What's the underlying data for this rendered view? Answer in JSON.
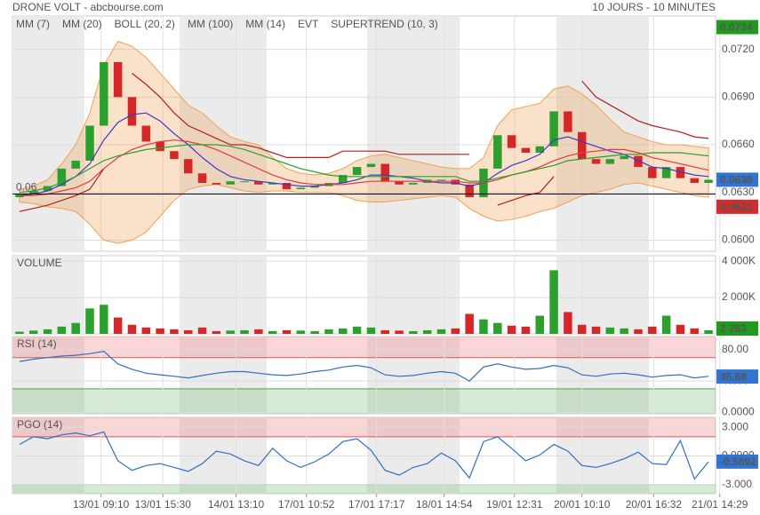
{
  "chart_data": [
    {
      "type": "candlestick",
      "title": "DRONE VOLT - abcbourse.com",
      "subtitle": "10 JOURS - 10 MINUTES",
      "xlim": [
        0,
        50
      ],
      "ylim": [
        0.0593,
        0.0741
      ],
      "yticks": [
        {
          "value": 0.06,
          "label": "0.0600"
        },
        {
          "value": 0.063,
          "label": "0.0630"
        },
        {
          "value": 0.066,
          "label": "0.0660"
        },
        {
          "value": 0.069,
          "label": "0.0690"
        },
        {
          "value": 0.072,
          "label": "0.0720"
        }
      ],
      "grid": true,
      "candles": {
        "up_color": "#2ca02c",
        "down_color": "#d62728",
        "open": [
          0.0627,
          0.0629,
          0.0631,
          0.0634,
          0.0645,
          0.065,
          0.0672,
          0.0712,
          0.069,
          0.0672,
          0.0662,
          0.0656,
          0.0651,
          0.0642,
          0.0636,
          0.0635,
          0.0637,
          0.0637,
          0.0635,
          0.0636,
          0.0632,
          0.0633,
          0.0634,
          0.0636,
          0.0641,
          0.0646,
          0.0648,
          0.0637,
          0.0635,
          0.0636,
          0.0638,
          0.0638,
          0.0635,
          0.0627,
          0.0645,
          0.0666,
          0.0658,
          0.0655,
          0.0659,
          0.0681,
          0.0668,
          0.0651,
          0.0648,
          0.0651,
          0.0653,
          0.0646,
          0.0639,
          0.0646,
          0.0639,
          0.0636
        ],
        "close": [
          0.0629,
          0.0631,
          0.0634,
          0.0645,
          0.065,
          0.0672,
          0.0712,
          0.069,
          0.0672,
          0.0662,
          0.0656,
          0.0651,
          0.0642,
          0.0636,
          0.0635,
          0.0637,
          0.0637,
          0.0635,
          0.0636,
          0.0632,
          0.0633,
          0.0634,
          0.0636,
          0.0641,
          0.0646,
          0.0648,
          0.0637,
          0.0635,
          0.0636,
          0.0638,
          0.0638,
          0.0635,
          0.0627,
          0.0645,
          0.0666,
          0.0658,
          0.0655,
          0.0659,
          0.0681,
          0.0668,
          0.0651,
          0.0648,
          0.0651,
          0.0653,
          0.0646,
          0.0639,
          0.0646,
          0.0639,
          0.0636,
          0.0638
        ]
      },
      "series": [
        {
          "name": "MM (7)",
          "color": "#3a3acf",
          "values": [
            0.0628,
            0.0629,
            0.0631,
            0.0635,
            0.064,
            0.0648,
            0.0663,
            0.0674,
            0.0679,
            0.068,
            0.0675,
            0.0667,
            0.066,
            0.0652,
            0.0645,
            0.064,
            0.0638,
            0.0637,
            0.0636,
            0.0635,
            0.0634,
            0.0634,
            0.0635,
            0.0636,
            0.0638,
            0.0641,
            0.0641,
            0.064,
            0.0639,
            0.0637,
            0.0636,
            0.0636,
            0.0634,
            0.0636,
            0.0642,
            0.0647,
            0.065,
            0.0654,
            0.0663,
            0.0665,
            0.0662,
            0.0659,
            0.0656,
            0.0654,
            0.065,
            0.0646,
            0.0645,
            0.0643,
            0.0641,
            0.064
          ]
        },
        {
          "name": "MM (20)",
          "color": "#e03c3c",
          "values": [
            0.0628,
            0.0628,
            0.0629,
            0.0631,
            0.0633,
            0.0637,
            0.0645,
            0.0652,
            0.0657,
            0.066,
            0.0662,
            0.0663,
            0.0662,
            0.066,
            0.0657,
            0.0653,
            0.0649,
            0.0645,
            0.0641,
            0.0638,
            0.0636,
            0.0635,
            0.0635,
            0.0635,
            0.0636,
            0.0637,
            0.0637,
            0.0637,
            0.0637,
            0.0637,
            0.0637,
            0.0637,
            0.0636,
            0.0636,
            0.0638,
            0.0641,
            0.0643,
            0.0646,
            0.065,
            0.0653,
            0.0655,
            0.0656,
            0.0657,
            0.0657,
            0.0655,
            0.0652,
            0.065,
            0.0648,
            0.0646,
            0.0644
          ]
        },
        {
          "name": "BOLL (20, 2)",
          "color": "#f0a050",
          "upper": [
            0.0632,
            0.0634,
            0.0638,
            0.0648,
            0.066,
            0.068,
            0.071,
            0.0725,
            0.0722,
            0.0715,
            0.0705,
            0.0695,
            0.0685,
            0.068,
            0.0672,
            0.0665,
            0.0662,
            0.066,
            0.0652,
            0.0645,
            0.0642,
            0.0641,
            0.0642,
            0.0645,
            0.065,
            0.0653,
            0.0654,
            0.0652,
            0.065,
            0.0648,
            0.0646,
            0.0645,
            0.0645,
            0.0652,
            0.0672,
            0.0682,
            0.0684,
            0.0686,
            0.0695,
            0.0697,
            0.0692,
            0.0685,
            0.0676,
            0.0668,
            0.0665,
            0.0662,
            0.066,
            0.066,
            0.0659,
            0.0658
          ],
          "lower": [
            0.0624,
            0.0623,
            0.0621,
            0.062,
            0.0618,
            0.061,
            0.06,
            0.0598,
            0.06,
            0.0605,
            0.0615,
            0.0625,
            0.0632,
            0.0634,
            0.0635,
            0.0633,
            0.0631,
            0.063,
            0.0631,
            0.0631,
            0.063,
            0.063,
            0.063,
            0.0628,
            0.0625,
            0.0624,
            0.0624,
            0.0625,
            0.0626,
            0.0627,
            0.0628,
            0.0627,
            0.062,
            0.0615,
            0.0612,
            0.0613,
            0.0615,
            0.0618,
            0.062,
            0.0624,
            0.0628,
            0.063,
            0.0632,
            0.0635,
            0.0636,
            0.0634,
            0.0632,
            0.063,
            0.0628,
            0.0627
          ]
        },
        {
          "name": "MM (100)",
          "color": "#2aa02a",
          "values": [
            0.063,
            0.0631,
            0.0633,
            0.0636,
            0.064,
            0.0645,
            0.065,
            0.0653,
            0.0655,
            0.0657,
            0.0658,
            0.0659,
            0.066,
            0.066,
            0.066,
            0.0659,
            0.0657,
            0.0654,
            0.0651,
            0.0648,
            0.0645,
            0.0643,
            0.0641,
            0.064,
            0.064,
            0.064,
            0.064,
            0.064,
            0.064,
            0.064,
            0.064,
            0.064,
            0.0637,
            0.0637,
            0.0639,
            0.0641,
            0.0643,
            0.0645,
            0.0647,
            0.065,
            0.0651,
            0.0652,
            0.0653,
            0.0654,
            0.0654,
            0.0655,
            0.0655,
            0.0655,
            0.0654,
            0.0653
          ]
        },
        {
          "name": "MM (14)",
          "color": "#444444"
        },
        {
          "name": "EVT",
          "color": "#000000"
        },
        {
          "name": "SUPERTREND (10, 3)",
          "color": "#b02020",
          "values": [
            0.0618,
            0.062,
            0.0622,
            0.0625,
            0.0628,
            0.0632,
            0.0645,
            null,
            0.0705,
            0.0698,
            0.069,
            0.068,
            0.0672,
            0.0668,
            0.0664,
            0.066,
            0.066,
            0.0658,
            0.0655,
            0.0652,
            0.0652,
            0.0652,
            0.0652,
            0.0656,
            0.0656,
            0.0656,
            0.0656,
            0.0654,
            0.0654,
            0.0654,
            0.0654,
            0.0654,
            0.0654,
            null,
            0.0622,
            0.0625,
            0.0628,
            0.063,
            0.064,
            null,
            0.07,
            0.069,
            0.0685,
            0.068,
            0.0675,
            0.0672,
            0.067,
            0.0668,
            0.0665,
            0.0664
          ]
        }
      ],
      "hline": {
        "value": 0.0629,
        "label": "0.06"
      },
      "badges": [
        {
          "value": 0.0734,
          "color": "#1e9c1e"
        },
        {
          "value": 0.0638,
          "color": "#2f75d1"
        },
        {
          "value": 0.0621,
          "color": "#d42a2a"
        }
      ]
    },
    {
      "type": "bar",
      "title": "VOLUME",
      "xlim": [
        0,
        50
      ],
      "ylim": [
        0,
        4300000
      ],
      "yticks": [
        {
          "value": 2000000,
          "label": "2 000K"
        },
        {
          "value": 4000000,
          "label": "4 000K"
        }
      ],
      "grid": true,
      "values": [
        120000,
        180000,
        250000,
        400000,
        600000,
        1400000,
        1600000,
        900000,
        500000,
        350000,
        300000,
        250000,
        200000,
        350000,
        150000,
        180000,
        200000,
        250000,
        150000,
        200000,
        180000,
        150000,
        250000,
        300000,
        400000,
        350000,
        200000,
        180000,
        150000,
        200000,
        250000,
        300000,
        1100000,
        800000,
        600000,
        450000,
        400000,
        1000000,
        3500000,
        1200000,
        500000,
        400000,
        350000,
        300000,
        250000,
        400000,
        1000000,
        500000,
        300000,
        200000
      ],
      "badges": [
        {
          "value": 2263,
          "label": "2 263",
          "color": "#1e9c1e"
        }
      ]
    },
    {
      "type": "line",
      "title": "RSI (14)",
      "color": "#2f6fc4",
      "xlim": [
        0,
        50
      ],
      "ylim": [
        -2,
        97
      ],
      "yticks": [
        {
          "value": 0,
          "label": "0.0000"
        },
        {
          "value": 40,
          "label": "40.00"
        },
        {
          "value": 80,
          "label": "80.00"
        }
      ],
      "grid": true,
      "bands": {
        "upper": 70,
        "lower": 30
      },
      "values": [
        65,
        68,
        70,
        72,
        73,
        75,
        78,
        62,
        55,
        50,
        48,
        46,
        44,
        47,
        50,
        52,
        52,
        50,
        48,
        47,
        49,
        52,
        54,
        58,
        60,
        57,
        48,
        46,
        47,
        50,
        52,
        50,
        40,
        58,
        62,
        58,
        55,
        56,
        60,
        57,
        48,
        46,
        49,
        50,
        48,
        45,
        47,
        48,
        44,
        46
      ],
      "badges": [
        {
          "value": 45.68,
          "color": "#2f75d1"
        }
      ]
    },
    {
      "type": "line",
      "title": "PGO (14)",
      "color": "#2f6fc4",
      "xlim": [
        0,
        50
      ],
      "ylim": [
        -3.94,
        4.03
      ],
      "yticks": [
        {
          "value": -3,
          "label": "-3.000"
        },
        {
          "value": 0,
          "label": "0.0000"
        },
        {
          "value": 3,
          "label": "3.000"
        }
      ],
      "grid": true,
      "bands": {
        "upper": 2,
        "lower": -3
      },
      "values": [
        1.2,
        2.0,
        1.8,
        2.2,
        2.4,
        2.1,
        2.5,
        -0.5,
        -1.5,
        -1.0,
        -0.8,
        -1.2,
        -1.6,
        -0.8,
        0.5,
        0.2,
        -0.5,
        -1.0,
        0.8,
        -0.5,
        -1.2,
        -0.6,
        0.2,
        1.5,
        1.8,
        0.6,
        -1.5,
        -2.0,
        -1.2,
        -0.8,
        0.3,
        -0.5,
        -2.3,
        1.5,
        2.0,
        0.8,
        -0.5,
        0.1,
        1.2,
        0.5,
        -1.0,
        -1.2,
        -0.8,
        -0.3,
        0.4,
        -0.8,
        -0.9,
        1.6,
        -2.4,
        -0.6
      ],
      "xticks": [
        {
          "value": 6.3,
          "label": "13/01 09:10"
        },
        {
          "value": 10.7,
          "label": "13/01 15:30"
        },
        {
          "value": 15.9,
          "label": "14/01 13:10"
        },
        {
          "value": 20.9,
          "label": "17/01 10:52"
        },
        {
          "value": 25.9,
          "label": "17/01 17:17"
        },
        {
          "value": 30.7,
          "label": "18/01 14:54"
        },
        {
          "value": 35.7,
          "label": "19/01 12:31"
        },
        {
          "value": 40.5,
          "label": "20/01 10:10"
        },
        {
          "value": 45.6,
          "label": "20/01 16:32"
        },
        {
          "value": 50.3,
          "label": "21/01 14:29"
        }
      ],
      "badges": [
        {
          "value": -0.5892,
          "color": "#2f75d1"
        }
      ]
    }
  ]
}
